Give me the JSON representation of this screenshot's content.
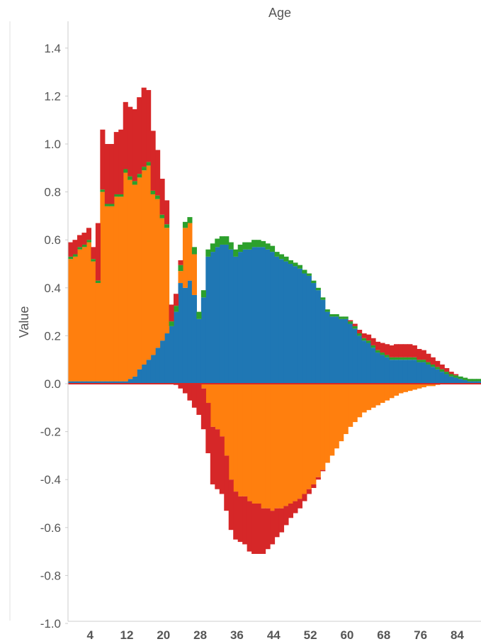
{
  "chart_data": {
    "type": "bar",
    "title": "Age",
    "xlabel": "",
    "ylabel": "Value",
    "ylim": [
      -1.0,
      1.5
    ],
    "y_ticks": [
      "1.4",
      "1.2",
      "1.0",
      "0.8",
      "0.6",
      "0.4",
      "0.2",
      "0.0",
      "-0.2",
      "-0.4",
      "-0.6",
      "-0.8",
      "-1.0"
    ],
    "x_ticks": [
      "4",
      "12",
      "20",
      "28",
      "36",
      "44",
      "52",
      "60",
      "68",
      "76",
      "84"
    ],
    "x": [
      0,
      1,
      2,
      3,
      4,
      5,
      6,
      7,
      8,
      9,
      10,
      11,
      12,
      13,
      14,
      15,
      16,
      17,
      18,
      19,
      20,
      21,
      22,
      23,
      24,
      25,
      26,
      27,
      28,
      29,
      30,
      31,
      32,
      33,
      34,
      35,
      36,
      37,
      38,
      39,
      40,
      41,
      42,
      43,
      44,
      45,
      46,
      47,
      48,
      49,
      50,
      51,
      52,
      53,
      54,
      55,
      56,
      57,
      58,
      59,
      60,
      61,
      62,
      63,
      64,
      65,
      66,
      67,
      68,
      69,
      70,
      71,
      72,
      73,
      74,
      75,
      76,
      77,
      78,
      79,
      80,
      81,
      82,
      83,
      84,
      85,
      86,
      87,
      88,
      89
    ],
    "colors": {
      "blue": "#1f77b4",
      "orange": "#ff7f0e",
      "green": "#2ca02c",
      "red": "#d62728"
    },
    "grid": false,
    "series": [
      {
        "color": "#1f77b4",
        "values": [
          0.01,
          0.01,
          0.01,
          0.01,
          0.01,
          0.01,
          0.01,
          0.01,
          0.01,
          0.01,
          0.01,
          0.01,
          0.01,
          0.02,
          0.03,
          0.06,
          0.08,
          0.1,
          0.12,
          0.15,
          0.18,
          0.21,
          0.24,
          0.3,
          0.42,
          0.4,
          0.43,
          0.37,
          0.27,
          0.36,
          0.53,
          0.55,
          0.57,
          0.58,
          0.58,
          0.56,
          0.53,
          0.55,
          0.56,
          0.56,
          0.57,
          0.57,
          0.57,
          0.56,
          0.55,
          0.53,
          0.52,
          0.51,
          0.5,
          0.49,
          0.48,
          0.46,
          0.45,
          0.42,
          0.39,
          0.35,
          0.3,
          0.28,
          0.28,
          0.27,
          0.27,
          0.25,
          0.23,
          0.2,
          0.18,
          0.17,
          0.15,
          0.13,
          0.12,
          0.11,
          0.1,
          0.1,
          0.1,
          0.1,
          0.1,
          0.1,
          0.09,
          0.09,
          0.08,
          0.07,
          0.06,
          0.05,
          0.04,
          0.03,
          0.025,
          0.02,
          0.015,
          0.01,
          0.01,
          0.01
        ]
      },
      {
        "color": "#ff7f0e",
        "values": [
          0.51,
          0.52,
          0.55,
          0.56,
          0.58,
          0.5,
          0.41,
          0.79,
          0.73,
          0.73,
          0.77,
          0.77,
          0.87,
          0.83,
          0.8,
          0.8,
          0.81,
          0.81,
          0.67,
          0.62,
          0.51,
          0.44,
          0.0,
          0.0,
          0.05,
          0.25,
          0.24,
          0.17,
          0.0,
          0.0,
          0.0,
          0.0,
          0.0,
          0.0,
          0.0,
          0.0,
          0.0,
          0.0,
          0.0,
          0.0,
          0.0,
          0.0,
          0.0,
          0.0,
          0.0,
          0.0,
          0.0,
          0.0,
          0.0,
          0.0,
          0.0,
          0.0,
          0.0,
          0.0,
          0.0,
          0.0,
          0.0,
          0.0,
          0.0,
          0.0,
          0.0,
          0.0,
          0.0,
          0.0,
          0.0,
          0.0,
          0.0,
          0.0,
          0.0,
          0.0,
          0.0,
          0.0,
          0.0,
          0.0,
          0.0,
          0.0,
          0.0,
          0.0,
          0.0,
          0.0,
          0.0,
          0.0,
          0.0,
          0.0,
          0.0,
          0.0,
          0.0,
          0.0,
          0.0,
          0.0
        ]
      },
      {
        "color": "#2ca02c",
        "values": [
          0.01,
          0.01,
          0.01,
          0.01,
          0.01,
          0.01,
          0.01,
          0.01,
          0.01,
          0.01,
          0.01,
          0.01,
          0.015,
          0.015,
          0.015,
          0.015,
          0.015,
          0.015,
          0.015,
          0.015,
          0.015,
          0.015,
          0.02,
          0.025,
          0.025,
          0.025,
          0.025,
          0.03,
          0.03,
          0.03,
          0.03,
          0.035,
          0.035,
          0.035,
          0.035,
          0.03,
          0.03,
          0.03,
          0.03,
          0.03,
          0.03,
          0.03,
          0.025,
          0.025,
          0.025,
          0.02,
          0.02,
          0.02,
          0.015,
          0.015,
          0.015,
          0.015,
          0.01,
          0.01,
          0.01,
          0.01,
          0.01,
          0.01,
          0.01,
          0.01,
          0.01,
          0.01,
          0.01,
          0.01,
          0.01,
          0.01,
          0.01,
          0.01,
          0.01,
          0.01,
          0.01,
          0.01,
          0.01,
          0.01,
          0.01,
          0.01,
          0.01,
          0.01,
          0.01,
          0.01,
          0.01,
          0.01,
          0.01,
          0.01,
          0.01,
          0.01,
          0.01,
          0.01,
          0.01,
          0.01
        ]
      },
      {
        "color": "#d62728",
        "values": [
          0.06,
          0.06,
          0.05,
          0.05,
          0.05,
          0.05,
          0.24,
          0.25,
          0.25,
          0.25,
          0.26,
          0.27,
          0.28,
          0.29,
          0.3,
          0.32,
          0.33,
          0.3,
          0.25,
          0.19,
          0.15,
          0.1,
          0.07,
          0.05,
          0.02,
          0.0,
          0.0,
          0.0,
          0.0,
          0.0,
          0.0,
          0.0,
          0.0,
          0.0,
          0.0,
          0.0,
          0.0,
          0.0,
          0.0,
          0.0,
          0.0,
          0.0,
          0.0,
          0.0,
          0.0,
          0.0,
          0.0,
          0.0,
          0.0,
          0.0,
          0.0,
          0.0,
          0.0,
          0.0,
          0.0,
          0.0,
          0.0,
          0.0,
          0.0,
          0.0,
          0.0,
          0.005,
          0.01,
          0.015,
          0.02,
          0.025,
          0.03,
          0.035,
          0.04,
          0.045,
          0.05,
          0.055,
          0.055,
          0.055,
          0.055,
          0.05,
          0.045,
          0.04,
          0.035,
          0.03,
          0.025,
          0.02,
          0.015,
          0.01,
          0.005,
          0.0,
          0.0,
          0.0,
          0.0,
          0.0
        ]
      },
      {
        "color": "#ff7f0e",
        "values": [
          0.0,
          0.0,
          0.0,
          0.0,
          0.0,
          0.0,
          0.0,
          0.0,
          0.0,
          0.0,
          0.0,
          0.0,
          0.0,
          0.0,
          0.0,
          0.0,
          0.0,
          0.0,
          0.0,
          0.0,
          0.0,
          0.0,
          0.0,
          0.0,
          0.0,
          0.0,
          0.0,
          0.0,
          0.0,
          -0.02,
          -0.08,
          -0.18,
          -0.19,
          -0.22,
          -0.3,
          -0.4,
          -0.45,
          -0.47,
          -0.47,
          -0.49,
          -0.5,
          -0.5,
          -0.52,
          -0.52,
          -0.53,
          -0.52,
          -0.52,
          -0.51,
          -0.5,
          -0.49,
          -0.48,
          -0.46,
          -0.44,
          -0.42,
          -0.39,
          -0.36,
          -0.33,
          -0.3,
          -0.27,
          -0.24,
          -0.21,
          -0.18,
          -0.16,
          -0.14,
          -0.12,
          -0.11,
          -0.1,
          -0.09,
          -0.08,
          -0.07,
          -0.06,
          -0.05,
          -0.04,
          -0.035,
          -0.03,
          -0.025,
          -0.02,
          -0.015,
          -0.01,
          -0.01,
          -0.005,
          0.0,
          0.0,
          0.0,
          0.0,
          0.0,
          0.0,
          0.0,
          0.0,
          0.0
        ]
      },
      {
        "color": "#d62728",
        "values": [
          0.0,
          0.0,
          0.0,
          0.0,
          0.0,
          0.0,
          0.0,
          0.0,
          0.0,
          0.0,
          0.0,
          0.0,
          0.0,
          0.0,
          0.0,
          0.0,
          0.0,
          0.0,
          0.0,
          0.0,
          0.0,
          0.0,
          0.0,
          -0.005,
          -0.02,
          -0.04,
          -0.07,
          -0.1,
          -0.13,
          -0.17,
          -0.21,
          -0.24,
          -0.25,
          -0.24,
          -0.23,
          -0.21,
          -0.2,
          -0.19,
          -0.2,
          -0.21,
          -0.21,
          -0.21,
          -0.19,
          -0.17,
          -0.14,
          -0.12,
          -0.1,
          -0.08,
          -0.06,
          -0.05,
          -0.04,
          -0.03,
          -0.02,
          -0.015,
          -0.01,
          -0.005,
          0.0,
          0.0,
          0.0,
          0.0,
          0.0,
          0.0,
          0.0,
          0.0,
          0.0,
          0.0,
          0.0,
          0.0,
          0.0,
          0.0,
          0.0,
          0.0,
          0.0,
          0.0,
          0.0,
          0.0,
          0.0,
          0.0,
          0.0,
          0.0,
          0.0,
          0.0,
          0.0,
          0.0,
          0.0,
          0.0,
          0.0,
          0.0,
          0.0,
          0.0
        ]
      }
    ]
  }
}
